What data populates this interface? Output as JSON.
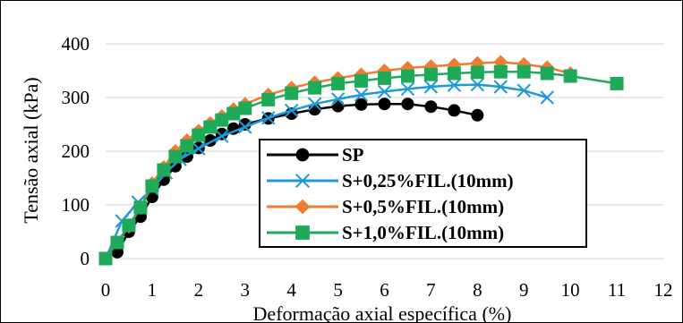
{
  "chart_data": {
    "type": "line",
    "xlabel": "Deformação axial específica (%)",
    "ylabel": "Tensão axial (kPa)",
    "xlim": [
      0,
      12
    ],
    "ylim": [
      0,
      400
    ],
    "x_ticks": [
      "0",
      "1",
      "2",
      "3",
      "4",
      "5",
      "6",
      "7",
      "8",
      "9",
      "10",
      "11",
      "12"
    ],
    "y_ticks": [
      "0",
      "100",
      "200",
      "300",
      "400"
    ],
    "grid": "horizontal",
    "legend_position": "bottom-right",
    "series": [
      {
        "name": "SP",
        "color": "#000000",
        "marker": "circle",
        "points": [
          [
            0,
            0
          ],
          [
            0.25,
            12
          ],
          [
            0.5,
            50
          ],
          [
            0.75,
            78
          ],
          [
            1,
            115
          ],
          [
            1.25,
            147
          ],
          [
            1.5,
            172
          ],
          [
            1.75,
            190
          ],
          [
            2,
            206
          ],
          [
            2.25,
            220
          ],
          [
            2.5,
            232
          ],
          [
            2.75,
            242
          ],
          [
            3,
            250
          ],
          [
            3.5,
            261
          ],
          [
            4,
            270
          ],
          [
            4.5,
            278
          ],
          [
            5,
            284
          ],
          [
            5.5,
            287
          ],
          [
            6,
            288
          ],
          [
            6.5,
            288
          ],
          [
            7,
            283
          ],
          [
            7.5,
            276
          ],
          [
            8,
            267
          ]
        ]
      },
      {
        "name": "S+0,25%FIL.(10mm)",
        "color": "#1e9ad6",
        "marker": "x",
        "points": [
          [
            0,
            0
          ],
          [
            0.35,
            70
          ],
          [
            0.7,
            105
          ],
          [
            1,
            130
          ],
          [
            1.3,
            160
          ],
          [
            1.6,
            185
          ],
          [
            2,
            205
          ],
          [
            2.5,
            228
          ],
          [
            3,
            245
          ],
          [
            3.5,
            262
          ],
          [
            4,
            276
          ],
          [
            4.5,
            288
          ],
          [
            5,
            297
          ],
          [
            5.5,
            305
          ],
          [
            6,
            311
          ],
          [
            6.5,
            316
          ],
          [
            7,
            320
          ],
          [
            7.5,
            323
          ],
          [
            8,
            324
          ],
          [
            8.5,
            320
          ],
          [
            9,
            313
          ],
          [
            9.5,
            300
          ]
        ]
      },
      {
        "name": "S+0,5%FIL.(10mm)",
        "color": "#ed7d31",
        "marker": "diamond",
        "points": [
          [
            0,
            0
          ],
          [
            0.5,
            60
          ],
          [
            0.75,
            95
          ],
          [
            1,
            140
          ],
          [
            1.25,
            170
          ],
          [
            1.5,
            200
          ],
          [
            1.75,
            220
          ],
          [
            2,
            238
          ],
          [
            2.25,
            252
          ],
          [
            2.5,
            265
          ],
          [
            2.75,
            278
          ],
          [
            3,
            288
          ],
          [
            3.5,
            305
          ],
          [
            4,
            318
          ],
          [
            4.5,
            328
          ],
          [
            5,
            336
          ],
          [
            5.5,
            343
          ],
          [
            6,
            350
          ],
          [
            6.5,
            355
          ],
          [
            7,
            358
          ],
          [
            7.5,
            361
          ],
          [
            8,
            364
          ],
          [
            8.5,
            366
          ],
          [
            9,
            362
          ],
          [
            9.5,
            356
          ],
          [
            10,
            345
          ]
        ]
      },
      {
        "name": "S+1,0%FIL.(10mm)",
        "color": "#1faa59",
        "marker": "square",
        "points": [
          [
            0,
            0
          ],
          [
            0.25,
            30
          ],
          [
            0.5,
            62
          ],
          [
            0.75,
            95
          ],
          [
            1,
            135
          ],
          [
            1.25,
            165
          ],
          [
            1.5,
            190
          ],
          [
            1.75,
            210
          ],
          [
            2,
            230
          ],
          [
            2.25,
            245
          ],
          [
            2.5,
            258
          ],
          [
            2.75,
            270
          ],
          [
            3,
            280
          ],
          [
            3.5,
            296
          ],
          [
            4,
            308
          ],
          [
            4.5,
            318
          ],
          [
            5,
            326
          ],
          [
            5.5,
            331
          ],
          [
            6,
            336
          ],
          [
            6.5,
            340
          ],
          [
            7,
            343
          ],
          [
            7.5,
            345
          ],
          [
            8,
            347
          ],
          [
            8.5,
            348
          ],
          [
            9,
            348
          ],
          [
            9.5,
            345
          ],
          [
            10,
            340
          ],
          [
            11,
            326
          ]
        ]
      }
    ]
  }
}
